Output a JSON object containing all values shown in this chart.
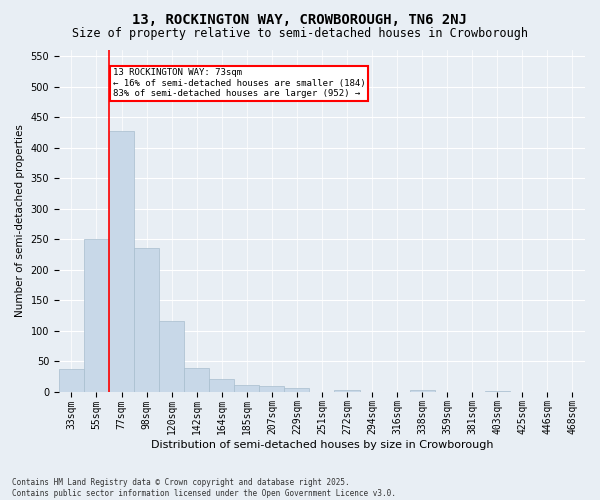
{
  "title": "13, ROCKINGTON WAY, CROWBOROUGH, TN6 2NJ",
  "subtitle": "Size of property relative to semi-detached houses in Crowborough",
  "xlabel": "Distribution of semi-detached houses by size in Crowborough",
  "ylabel": "Number of semi-detached properties",
  "categories": [
    "33sqm",
    "55sqm",
    "77sqm",
    "98sqm",
    "120sqm",
    "142sqm",
    "164sqm",
    "185sqm",
    "207sqm",
    "229sqm",
    "251sqm",
    "272sqm",
    "294sqm",
    "316sqm",
    "338sqm",
    "359sqm",
    "381sqm",
    "403sqm",
    "425sqm",
    "446sqm",
    "468sqm"
  ],
  "values": [
    37,
    250,
    428,
    235,
    116,
    38,
    21,
    10,
    9,
    6,
    0,
    3,
    0,
    0,
    2,
    0,
    0,
    1,
    0,
    0,
    0
  ],
  "bar_color": "#c8d8e8",
  "bar_edge_color": "#a8bece",
  "property_line_x": 1.5,
  "property_label": "13 ROCKINGTON WAY: 73sqm",
  "smaller_text": "← 16% of semi-detached houses are smaller (184)",
  "larger_text": "83% of semi-detached houses are larger (952) →",
  "annotation_box_color": "#ff0000",
  "annotation_fill": "#ffffff",
  "ylim": [
    0,
    560
  ],
  "yticks": [
    0,
    50,
    100,
    150,
    200,
    250,
    300,
    350,
    400,
    450,
    500,
    550
  ],
  "footnote1": "Contains HM Land Registry data © Crown copyright and database right 2025.",
  "footnote2": "Contains public sector information licensed under the Open Government Licence v3.0.",
  "background_color": "#e8eef4",
  "plot_bg_color": "#e8eef4",
  "title_fontsize": 10,
  "subtitle_fontsize": 8.5,
  "tick_fontsize": 7,
  "ylabel_fontsize": 7.5,
  "xlabel_fontsize": 8
}
